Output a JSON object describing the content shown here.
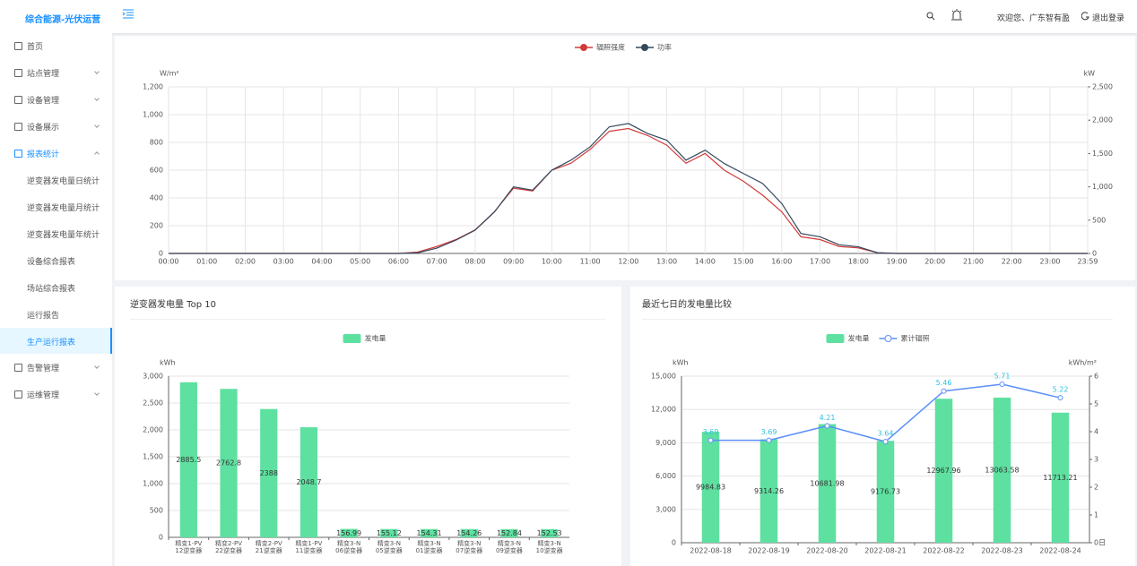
{
  "header": {
    "brand": "综合能源-光伏运营",
    "welcome": "欢迎您、广东智有盈",
    "logout": "退出登录"
  },
  "menu": [
    {
      "label": "首页"
    },
    {
      "label": "站点管理"
    },
    {
      "label": "设备管理"
    },
    {
      "label": "设备展示"
    },
    {
      "label": "报表统计",
      "children": [
        "逆变器发电量日统计",
        "逆变器发电量月统计",
        "逆变器发电量年统计",
        "设备综合报表",
        "场站综合报表",
        "运行报告",
        "生产运行报表"
      ]
    },
    {
      "label": "告警管理"
    },
    {
      "label": "运维管理"
    }
  ],
  "chart_data": [
    {
      "type": "line",
      "y_label": "W/m²",
      "y2_label": "kW",
      "x": [
        "00:00",
        "00:30",
        "01:00",
        "01:30",
        "02:00",
        "02:30",
        "03:00",
        "03:30",
        "04:00",
        "04:30",
        "05:00",
        "05:30",
        "06:00",
        "06:30",
        "07:00",
        "07:30",
        "08:00",
        "08:30",
        "09:00",
        "09:30",
        "10:00",
        "10:30",
        "11:00",
        "11:30",
        "12:00",
        "12:30",
        "13:00",
        "13:30",
        "14:00",
        "14:30",
        "15:00",
        "15:30",
        "16:00",
        "16:30",
        "17:00",
        "17:30",
        "18:00",
        "18:30",
        "19:00",
        "19:30",
        "20:00",
        "20:30",
        "21:00",
        "21:30",
        "22:00",
        "22:30",
        "23:00",
        "23:30",
        "23:59"
      ],
      "xlim": [
        "00:00",
        "23:59"
      ],
      "xticks": [
        "00:00",
        "01:00",
        "02:00",
        "03:00",
        "04:00",
        "05:00",
        "06:00",
        "07:00",
        "08:00",
        "09:00",
        "10:00",
        "11:00",
        "12:00",
        "13:00",
        "14:00",
        "15:00",
        "16:00",
        "17:00",
        "18:00",
        "19:00",
        "20:00",
        "21:00",
        "22:00",
        "23:00",
        "23:59"
      ],
      "ylim": [
        0,
        1200
      ],
      "yticks": [
        0,
        200,
        400,
        600,
        800,
        {
          "value": 1000,
          "label": "1,000"
        },
        {
          "value": 1200,
          "label": "1,200"
        }
      ],
      "y2lim": [
        0,
        2500
      ],
      "y2ticks": [
        0,
        500,
        {
          "value": 1000,
          "label": "1,000"
        },
        {
          "value": 1500,
          "label": "1,500"
        },
        {
          "value": 2000,
          "label": "2,000"
        },
        {
          "value": 2500,
          "label": "2,500"
        }
      ],
      "grid": true,
      "xgrid": true,
      "series": [
        {
          "name": "辐照强度",
          "color": "#d23b3b",
          "values": [
            0,
            0,
            0,
            0,
            0,
            0,
            0,
            0,
            0,
            0,
            0,
            0,
            0,
            10,
            50,
            100,
            170,
            300,
            470,
            450,
            600,
            650,
            750,
            880,
            900,
            850,
            780,
            650,
            720,
            600,
            520,
            420,
            300,
            120,
            100,
            50,
            40,
            5,
            0,
            0,
            0,
            0,
            0,
            0,
            0,
            0,
            0,
            0,
            0
          ]
        },
        {
          "name": "功率",
          "color": "#34495e",
          "axis": "y2",
          "values": [
            0,
            0,
            0,
            0,
            0,
            0,
            0,
            0,
            0,
            0,
            0,
            0,
            0,
            10,
            80,
            200,
            350,
            620,
            1000,
            950,
            1250,
            1400,
            1600,
            1900,
            1950,
            1800,
            1700,
            1400,
            1550,
            1350,
            1200,
            1050,
            750,
            300,
            250,
            130,
            100,
            10,
            0,
            0,
            0,
            0,
            0,
            0,
            0,
            0,
            0,
            0,
            0
          ]
        }
      ]
    },
    {
      "type": "bar",
      "title": "逆变器发电量 Top 10",
      "y_label": "kWh",
      "categories": [
        "精变1-PV12逆变器",
        "精变2-PV22逆变器",
        "精变2-PV21逆变器",
        "精变1-PV11逆变器",
        "精变3-N06逆变器",
        "精变3-N05逆变器",
        "精变3-N01逆变器",
        "精变3-N07逆变器",
        "精变3-N09逆变器",
        "精变3-N10逆变器"
      ],
      "ylim": [
        0,
        3000
      ],
      "yticks": [
        0,
        500,
        {
          "value": 1000,
          "label": "1,000"
        },
        {
          "value": 1500,
          "label": "1,500"
        },
        {
          "value": 2000,
          "label": "2,000"
        },
        {
          "value": 2500,
          "label": "2,500"
        },
        {
          "value": 3000,
          "label": "3,000"
        }
      ],
      "grid": true,
      "series": [
        {
          "name": "发电量",
          "color": "#5ee0a0",
          "values": [
            2885.5,
            2762.8,
            2388,
            2048.7,
            156.99,
            155.12,
            154.31,
            154.26,
            152.84,
            152.53
          ]
        }
      ]
    },
    {
      "type": "combo",
      "title": "最近七日的发电量比较",
      "y_label": "kWh",
      "y2_label": "kWh/m²",
      "categories": [
        "2022-08-18",
        "2022-08-19",
        "2022-08-20",
        "2022-08-21",
        "2022-08-22",
        "2022-08-23",
        "2022-08-24"
      ],
      "ylim": [
        0,
        15000
      ],
      "yticks": [
        0,
        {
          "value": 3000,
          "label": "3,000"
        },
        {
          "value": 6000,
          "label": "6,000"
        },
        {
          "value": 9000,
          "label": "9,000"
        },
        {
          "value": 12000,
          "label": "12,000"
        },
        {
          "value": 15000,
          "label": "15,000"
        }
      ],
      "y2lim": [
        0,
        6
      ],
      "y2ticks": [
        {
          "value": 0,
          "label": "0日"
        },
        1,
        2,
        3,
        4,
        5,
        6
      ],
      "grid": true,
      "series": [
        {
          "name": "发电量",
          "color": "#5ee0a0",
          "values": [
            9984.83,
            9314.26,
            10681.98,
            9176.73,
            12967.96,
            13063.58,
            11713.21
          ]
        },
        {
          "name": "累计辐照",
          "color": "#5b8ff9",
          "label_color": "#2fc2e0",
          "axis": "y2",
          "values": [
            3.69,
            3.69,
            4.21,
            3.64,
            5.46,
            5.71,
            5.22
          ]
        }
      ]
    }
  ]
}
